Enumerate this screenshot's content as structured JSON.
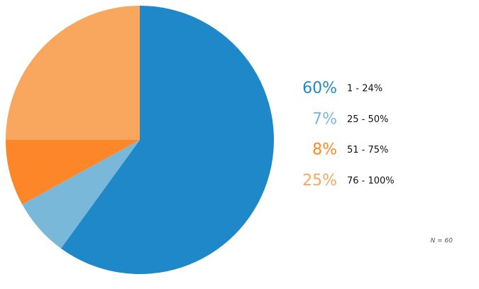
{
  "chart_data": {
    "type": "pie",
    "categories": [
      "1 - 24%",
      "25 - 50%",
      "51 - 75%",
      "76 - 100%"
    ],
    "values": [
      60,
      7,
      8,
      25
    ],
    "value_labels": [
      "60%",
      "7%",
      "8%",
      "25%"
    ],
    "colors": [
      "#1f88c8",
      "#7ab8d9",
      "#fd8728",
      "#f9a65e"
    ],
    "annotation": "N = 60"
  }
}
